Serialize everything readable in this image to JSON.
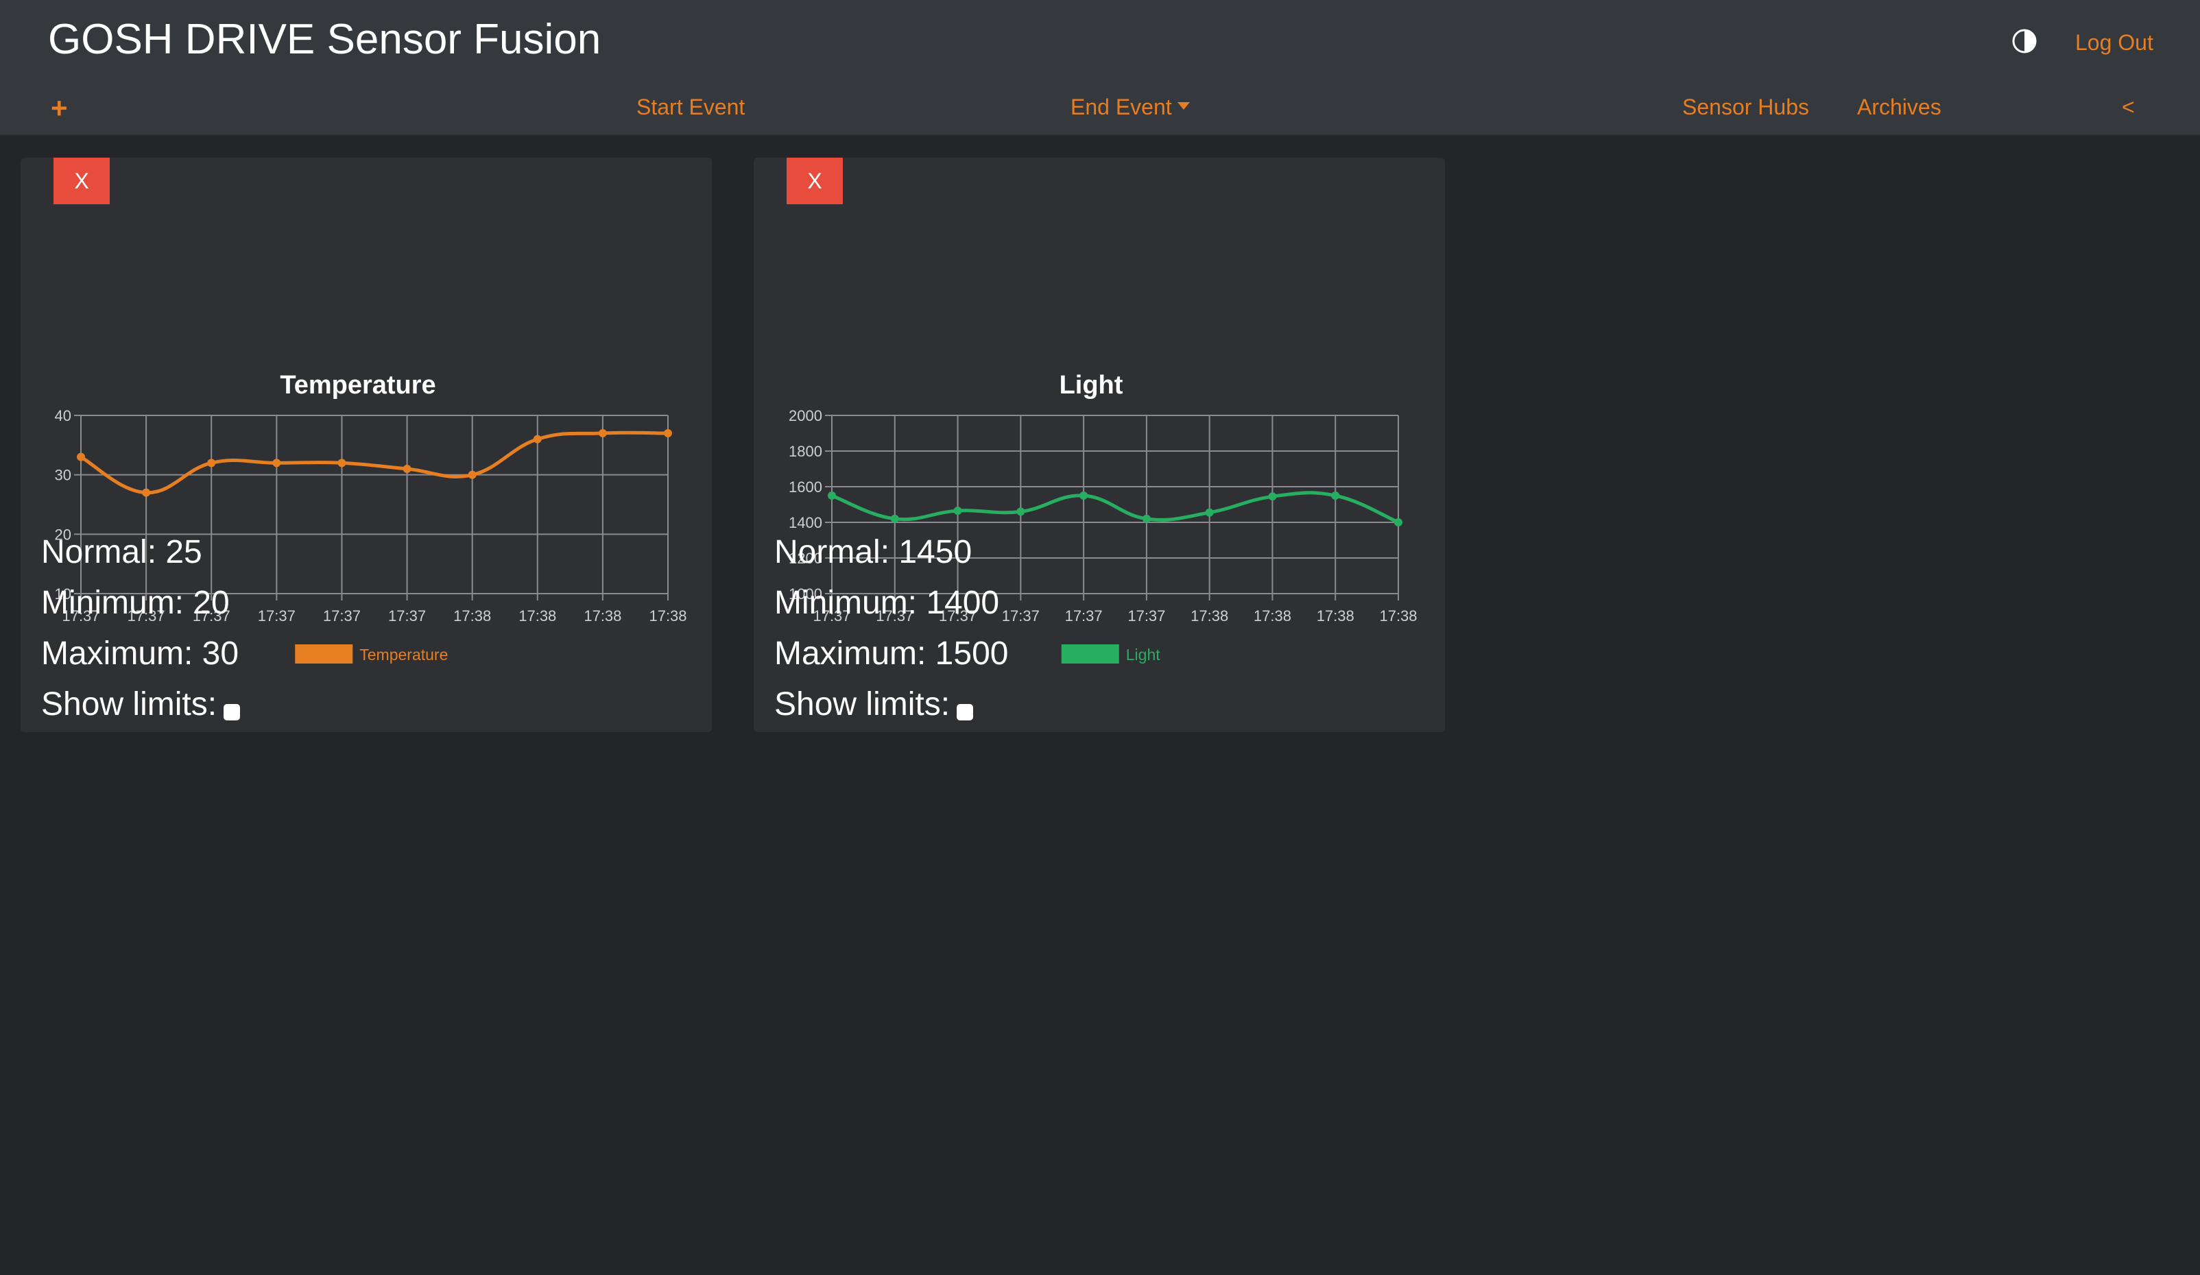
{
  "header": {
    "title": "GOSH DRIVE Sensor Fusion",
    "logout_label": "Log Out",
    "add_label": "+",
    "start_event_label": "Start Event",
    "end_event_label": "End Event",
    "sensor_hubs_label": "Sensor Hubs",
    "archives_label": "Archives",
    "collapse_label": "<",
    "accent_color": "#e67e22"
  },
  "cards": [
    {
      "close_label": "X",
      "normal_label": "Normal: 25",
      "minimum_label": "Minimum: 20",
      "maximum_label": "Maximum: 30",
      "show_limits_label": "Show limits:",
      "show_limits_checked": false
    },
    {
      "close_label": "X",
      "normal_label": "Normal: 1450",
      "minimum_label": "Minimum: 1400",
      "maximum_label": "Maximum: 1500",
      "show_limits_label": "Show limits:",
      "show_limits_checked": false
    }
  ],
  "chart_data": [
    {
      "type": "line",
      "title": "Temperature",
      "categories": [
        "17:37",
        "17:37",
        "17:37",
        "17:37",
        "17:37",
        "17:37",
        "17:38",
        "17:38",
        "17:38",
        "17:38"
      ],
      "series": [
        {
          "name": "Temperature",
          "color": "#e67e22",
          "values": [
            33,
            27,
            32,
            32,
            32,
            31,
            30,
            36,
            37,
            37
          ]
        }
      ],
      "ylim": [
        10,
        40
      ],
      "yticks": [
        10,
        20,
        30,
        40
      ],
      "grid": true,
      "legend": "bottom"
    },
    {
      "type": "line",
      "title": "Light",
      "categories": [
        "17:37",
        "17:37",
        "17:37",
        "17:37",
        "17:37",
        "17:37",
        "17:38",
        "17:38",
        "17:38",
        "17:38"
      ],
      "series": [
        {
          "name": "Light",
          "color": "#27ae60",
          "values": [
            1550,
            1420,
            1465,
            1460,
            1550,
            1420,
            1455,
            1545,
            1550,
            1400
          ]
        }
      ],
      "ylim": [
        1000,
        2000
      ],
      "yticks": [
        1000,
        1200,
        1400,
        1600,
        1800,
        2000
      ],
      "grid": true,
      "legend": "bottom"
    }
  ]
}
